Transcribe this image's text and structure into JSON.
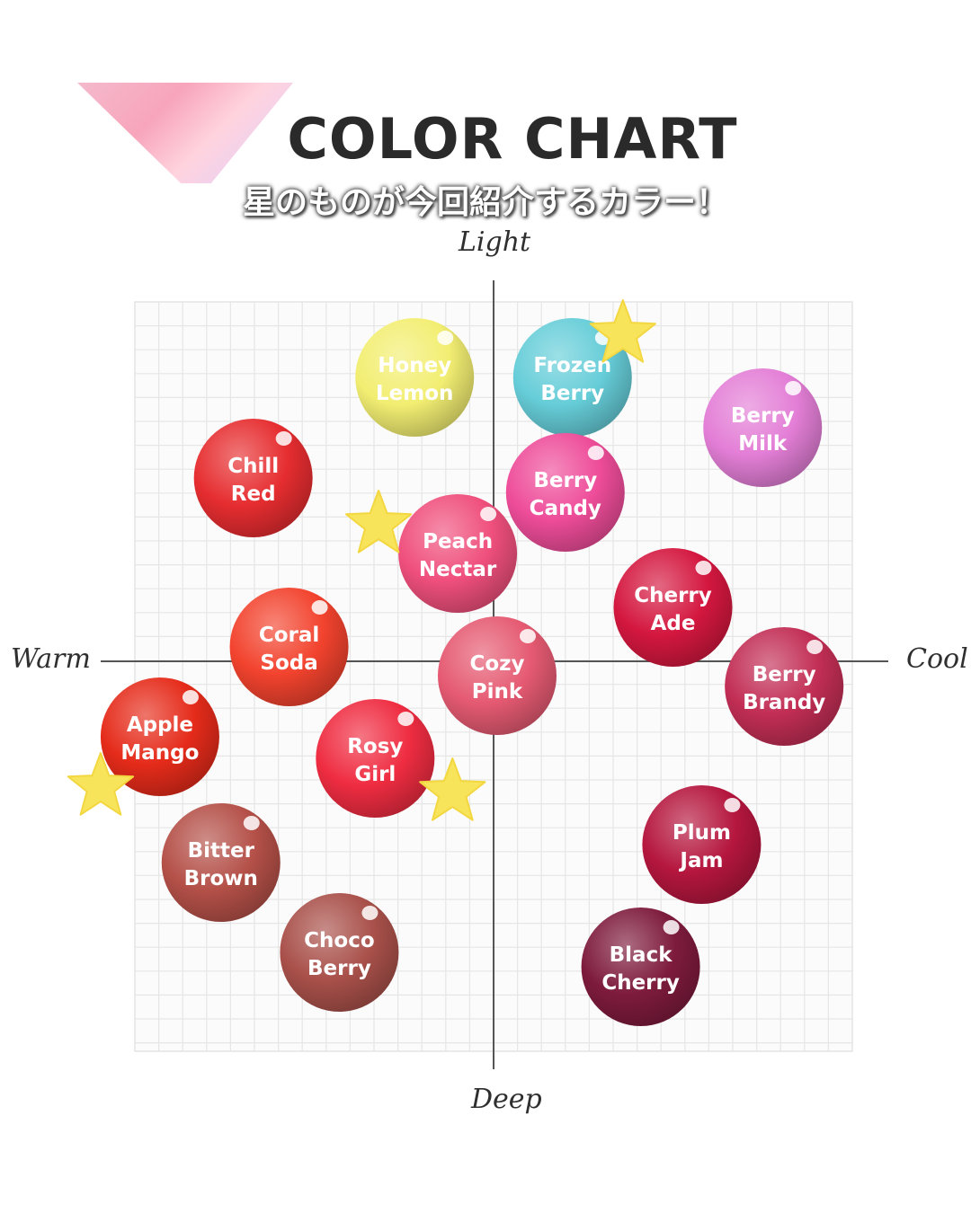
{
  "header": {
    "title": "COLOR CHART",
    "subtitle": "星のものが今回紹介するカラー！"
  },
  "chart_data": {
    "type": "scatter",
    "axes": {
      "top": "Light",
      "bottom": "Deep",
      "left": "Warm",
      "right": "Cool"
    },
    "grid": true,
    "xlim": [
      -1,
      1
    ],
    "ylim": [
      -1,
      1
    ],
    "points": [
      {
        "name": "Honey Lemon",
        "lines": [
          "Honey",
          "Lemon"
        ],
        "x": -0.22,
        "y": 0.79,
        "color": "#f2ee72",
        "starred": false
      },
      {
        "name": "Frozen Berry",
        "lines": [
          "Frozen",
          "Berry"
        ],
        "x": 0.22,
        "y": 0.79,
        "color": "#66cdd8",
        "starred": true
      },
      {
        "name": "Berry Milk",
        "lines": [
          "Berry",
          "Milk"
        ],
        "x": 0.75,
        "y": 0.65,
        "color": "#e37ed6",
        "starred": false
      },
      {
        "name": "Chill Red",
        "lines": [
          "Chill",
          "Red"
        ],
        "x": -0.67,
        "y": 0.51,
        "color": "#e62d30",
        "starred": false
      },
      {
        "name": "Berry Candy",
        "lines": [
          "Berry",
          "Candy"
        ],
        "x": 0.2,
        "y": 0.47,
        "color": "#ee4c99",
        "starred": false
      },
      {
        "name": "Peach Nectar",
        "lines": [
          "Peach",
          "Nectar"
        ],
        "x": -0.1,
        "y": 0.3,
        "color": "#ef4f7c",
        "starred": true
      },
      {
        "name": "Cherry Ade",
        "lines": [
          "Cherry",
          "Ade"
        ],
        "x": 0.5,
        "y": 0.15,
        "color": "#d4173f",
        "starred": false
      },
      {
        "name": "Coral Soda",
        "lines": [
          "Coral",
          "Soda"
        ],
        "x": -0.57,
        "y": 0.04,
        "color": "#f2432e",
        "starred": false
      },
      {
        "name": "Cozy Pink",
        "lines": [
          "Cozy",
          "Pink"
        ],
        "x": 0.01,
        "y": -0.04,
        "color": "#e55a72",
        "starred": false
      },
      {
        "name": "Berry Brandy",
        "lines": [
          "Berry",
          "Brandy"
        ],
        "x": 0.81,
        "y": -0.07,
        "color": "#c22e55",
        "starred": false
      },
      {
        "name": "Apple Mango",
        "lines": [
          "Apple",
          "Mango"
        ],
        "x": -0.93,
        "y": -0.21,
        "color": "#e52b1a",
        "starred": true
      },
      {
        "name": "Rosy Girl",
        "lines": [
          "Rosy",
          "Girl"
        ],
        "x": -0.33,
        "y": -0.27,
        "color": "#ef2c41",
        "starred": true
      },
      {
        "name": "Bitter Brown",
        "lines": [
          "Bitter",
          "Brown"
        ],
        "x": -0.76,
        "y": -0.56,
        "color": "#b45048",
        "starred": false
      },
      {
        "name": "Plum Jam",
        "lines": [
          "Plum",
          "Jam"
        ],
        "x": 0.58,
        "y": -0.51,
        "color": "#b5163e",
        "starred": false
      },
      {
        "name": "Choco Berry",
        "lines": [
          "Choco",
          "Berry"
        ],
        "x": -0.43,
        "y": -0.81,
        "color": "#a9504a",
        "starred": false
      },
      {
        "name": "Black Cherry",
        "lines": [
          "Black",
          "Cherry"
        ],
        "x": 0.41,
        "y": -0.85,
        "color": "#7e1b3d",
        "starred": false
      }
    ]
  }
}
